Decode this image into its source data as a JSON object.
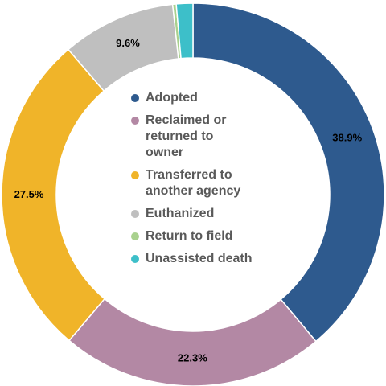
{
  "chart_data": {
    "type": "pie",
    "donut": true,
    "title": "",
    "legend_position": "center",
    "categories": [
      "Adopted",
      "Reclaimed or returned to owner",
      "Transferred to another agency",
      "Euthanized",
      "Return to field",
      "Unassisted death"
    ],
    "legend_lines": [
      [
        "Adopted"
      ],
      [
        "Reclaimed or",
        "returned to",
        "owner"
      ],
      [
        "Transferred to",
        "another agency"
      ],
      [
        "Euthanized"
      ],
      [
        "Return to field"
      ],
      [
        "Unassisted death"
      ]
    ],
    "values": [
      38.9,
      22.3,
      27.5,
      9.6,
      0.3,
      1.4
    ],
    "labels": [
      "38.9%",
      "22.3%",
      "27.5%",
      "9.6%",
      "",
      ""
    ],
    "colors": [
      "#2E5A8E",
      "#B388A4",
      "#F0B429",
      "#BFBFBF",
      "#A9D18E",
      "#3DBFC9"
    ]
  }
}
